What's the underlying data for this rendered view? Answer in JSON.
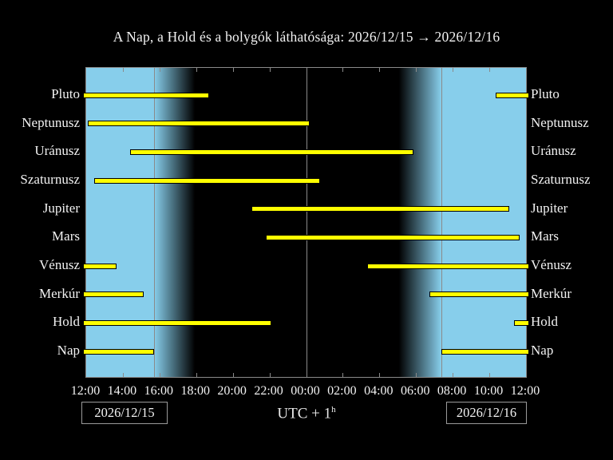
{
  "title": "A Nap, a Hold és a bolygók láthatósága: 2026/12/15 → 2026/12/16",
  "footer": {
    "timezone_label": "UTC + 1",
    "timezone_superscript": "h",
    "date_left": "2026/12/15",
    "date_right": "2026/12/16"
  },
  "chart_data": {
    "type": "bar",
    "subtype": "horizontal-visibility-intervals",
    "title": "A Nap, a Hold és a bolygók láthatósága: 2026/12/15 → 2026/12/16",
    "x_axis": {
      "description": "Local time from 12:00 on 2026/12/15 to 12:00 on 2026/12/16, hours after 12:00",
      "range_hours": [
        0,
        24
      ],
      "tick_interval_hours": 2,
      "tick_labels": [
        "12:00",
        "14:00",
        "16:00",
        "18:00",
        "20:00",
        "22:00",
        "00:00",
        "02:00",
        "04:00",
        "06:00",
        "08:00",
        "10:00",
        "12:00"
      ]
    },
    "rows": [
      {
        "name": "Pluto",
        "intervals": [
          [
            0,
            6.7
          ],
          [
            22.35,
            24
          ]
        ]
      },
      {
        "name": "Neptunusz",
        "intervals": [
          [
            0.1,
            12.2
          ]
        ]
      },
      {
        "name": "Uránusz",
        "intervals": [
          [
            2.4,
            17.85
          ]
        ]
      },
      {
        "name": "Szaturnusz",
        "intervals": [
          [
            0.45,
            12.75
          ]
        ]
      },
      {
        "name": "Jupiter",
        "intervals": [
          [
            9.0,
            23.1
          ]
        ]
      },
      {
        "name": "Mars",
        "intervals": [
          [
            9.8,
            23.65
          ]
        ]
      },
      {
        "name": "Vénusz",
        "intervals": [
          [
            0,
            1.65
          ],
          [
            15.35,
            24
          ]
        ]
      },
      {
        "name": "Merkúr",
        "intervals": [
          [
            0,
            3.15
          ],
          [
            18.75,
            24
          ]
        ]
      },
      {
        "name": "Hold",
        "intervals": [
          [
            0,
            10.1
          ],
          [
            23.35,
            24
          ]
        ]
      },
      {
        "name": "Nap",
        "intervals": [
          [
            0,
            3.71
          ],
          [
            19.37,
            24
          ]
        ]
      }
    ],
    "day_night": {
      "sunset_hour": 3.71,
      "dusk_end_hour": 5.93,
      "dawn_start_hour": 17.06,
      "sunrise_hour": 19.37,
      "midnight_hour": 12,
      "gridline_hours": [
        3.71,
        12,
        19.37
      ]
    },
    "legend_position": "none",
    "grid": "off",
    "colors": {
      "day": "#87ceeb",
      "night": "#000000",
      "bar_fill": "#ffff00",
      "bar_border": "#000000",
      "frame": "#8a8a8a",
      "text": "#f2f2f2"
    }
  }
}
